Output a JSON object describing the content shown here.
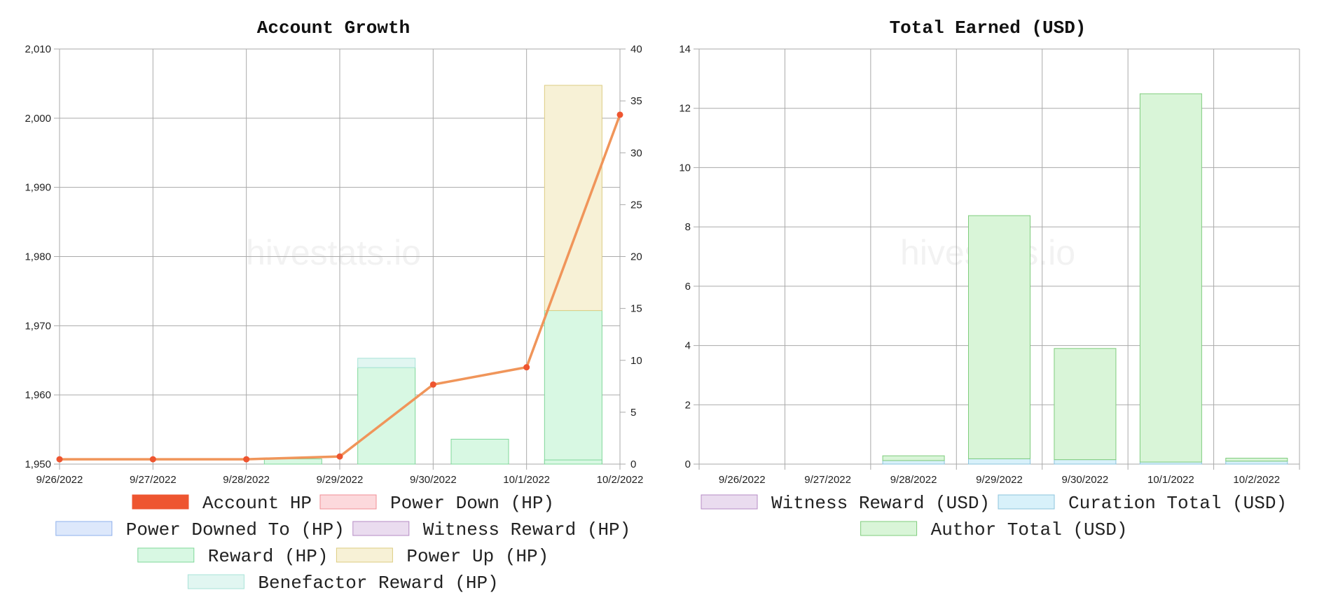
{
  "watermark": "hivestats.io",
  "chart_data": [
    {
      "type": "bar",
      "title": "Account Growth",
      "categories": [
        "9/26/2022",
        "9/27/2022",
        "9/28/2022",
        "9/29/2022",
        "9/30/2022",
        "10/1/2022",
        "10/2/2022"
      ],
      "ylim_left": [
        1950,
        2010
      ],
      "yticks_left": [
        "1,950",
        "1,960",
        "1,970",
        "1,980",
        "1,990",
        "2,000",
        "2,010"
      ],
      "ylim_right": [
        0,
        40
      ],
      "yticks_right": [
        "0",
        "5",
        "10",
        "15",
        "20",
        "25",
        "30",
        "35",
        "40"
      ],
      "grid": true,
      "legend_position": "bottom",
      "line_series": {
        "name": "Account HP",
        "axis": "left",
        "color": "#ee5530",
        "line_color": "#f0955a",
        "values": [
          1950.7,
          1950.7,
          1950.7,
          1951.1,
          1961.5,
          1964.0,
          2000.5
        ]
      },
      "bar_series": [
        {
          "name": "Power Down (HP)",
          "fill": "#fcd9dc",
          "stroke": "#f08e95",
          "values": [
            0,
            0,
            0,
            0,
            0,
            0,
            0
          ]
        },
        {
          "name": "Power Downed To (HP)",
          "fill": "#dde8fb",
          "stroke": "#8fb0ec",
          "values": [
            0,
            0,
            0,
            0,
            0,
            0,
            0
          ]
        },
        {
          "name": "Witness Reward (HP)",
          "fill": "#eadcef",
          "stroke": "#b58bc4",
          "values": [
            0,
            0,
            0,
            0,
            0,
            0,
            0
          ]
        },
        {
          "name": "Reward (HP)",
          "fill": "#d8f8e3",
          "stroke": "#7fd79a",
          "values": [
            0,
            0,
            0.5,
            9.3,
            2.4,
            14.8,
            0.4
          ]
        },
        {
          "name": "Power Up (HP)",
          "fill": "#f7f1d6",
          "stroke": "#ddcd82",
          "values": [
            0,
            0,
            0,
            0,
            0,
            21.7,
            0
          ]
        },
        {
          "name": "Benefactor Reward (HP)",
          "fill": "#e1f6f1",
          "stroke": "#a8e3d8",
          "values": [
            0,
            0,
            0,
            0.9,
            0,
            0,
            0
          ]
        }
      ]
    },
    {
      "type": "bar",
      "title": "Total Earned (USD)",
      "categories": [
        "9/26/2022",
        "9/27/2022",
        "9/28/2022",
        "9/29/2022",
        "9/30/2022",
        "10/1/2022",
        "10/2/2022"
      ],
      "ylim": [
        0,
        14
      ],
      "yticks": [
        "0",
        "2",
        "4",
        "6",
        "8",
        "10",
        "12",
        "14"
      ],
      "grid": true,
      "legend_position": "bottom",
      "series": [
        {
          "name": "Witness Reward (USD)",
          "fill": "#eadcef",
          "stroke": "#b58bc4",
          "values": [
            0,
            0,
            0,
            0,
            0,
            0,
            0
          ]
        },
        {
          "name": "Curation Total (USD)",
          "fill": "#d8f1fa",
          "stroke": "#8cc4dc",
          "values": [
            0,
            0,
            0.12,
            0.18,
            0.15,
            0.07,
            0.1
          ]
        },
        {
          "name": "Author Total (USD)",
          "fill": "#d9f5d8",
          "stroke": "#7fcc7d",
          "values": [
            0,
            0,
            0.16,
            8.2,
            3.75,
            12.42,
            0.1
          ]
        }
      ]
    }
  ]
}
